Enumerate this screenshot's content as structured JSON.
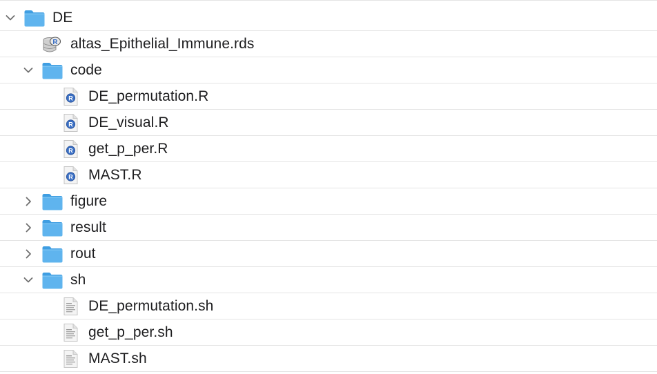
{
  "tree": {
    "items": [
      {
        "label": "DE",
        "kind": "folder",
        "level": 0,
        "expanded": true
      },
      {
        "label": "altas_Epithelial_Immune.rds",
        "kind": "rds-file",
        "level": 1
      },
      {
        "label": "code",
        "kind": "folder",
        "level": 1,
        "expanded": true
      },
      {
        "label": "DE_permutation.R",
        "kind": "r-file",
        "level": 2
      },
      {
        "label": "DE_visual.R",
        "kind": "r-file",
        "level": 2
      },
      {
        "label": "get_p_per.R",
        "kind": "r-file",
        "level": 2
      },
      {
        "label": "MAST.R",
        "kind": "r-file",
        "level": 2
      },
      {
        "label": "figure",
        "kind": "folder",
        "level": 1,
        "expanded": false
      },
      {
        "label": "result",
        "kind": "folder",
        "level": 1,
        "expanded": false
      },
      {
        "label": "rout",
        "kind": "folder",
        "level": 1,
        "expanded": false
      },
      {
        "label": "sh",
        "kind": "folder",
        "level": 1,
        "expanded": true
      },
      {
        "label": "DE_permutation.sh",
        "kind": "sh-file",
        "level": 2
      },
      {
        "label": "get_p_per.sh",
        "kind": "sh-file",
        "level": 2
      },
      {
        "label": "MAST.sh",
        "kind": "sh-file",
        "level": 2
      }
    ]
  },
  "colors": {
    "folder_body": "#5fb4ee",
    "folder_back": "#3f9ee2",
    "divider": "#e4e4e4",
    "text": "#1d1d1f",
    "r_badge": "#3a6fc4"
  },
  "icons": {
    "folder": "folder-icon",
    "rds-file": "database-file-icon",
    "r-file": "r-script-icon",
    "sh-file": "text-document-icon",
    "expanded": "chevron-down-icon",
    "collapsed": "chevron-right-icon"
  }
}
